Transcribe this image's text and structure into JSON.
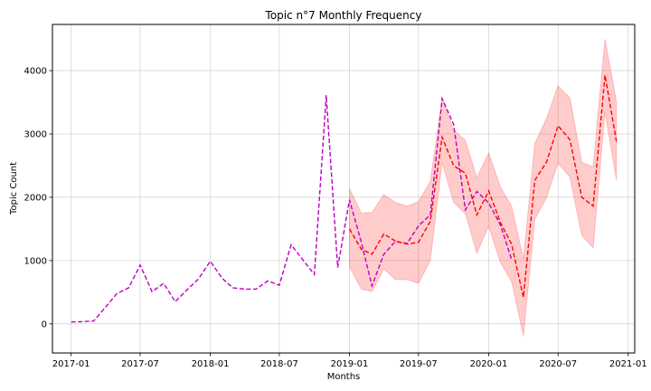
{
  "chart_data": {
    "type": "line",
    "title": "Topic n°7 Monthly Frequency",
    "xlabel": "Months",
    "ylabel": "Topic Count",
    "x_range": [
      "2016-11-13",
      "2021-01-18"
    ],
    "y_range": [
      -460,
      4730
    ],
    "grid": true,
    "x_ticks": [
      {
        "date": "2017-01-01",
        "label": "2017-01"
      },
      {
        "date": "2017-07-01",
        "label": "2017-07"
      },
      {
        "date": "2018-01-01",
        "label": "2018-01"
      },
      {
        "date": "2018-07-01",
        "label": "2018-07"
      },
      {
        "date": "2019-01-01",
        "label": "2019-01"
      },
      {
        "date": "2019-07-01",
        "label": "2019-07"
      },
      {
        "date": "2020-01-01",
        "label": "2020-01"
      },
      {
        "date": "2020-07-01",
        "label": "2020-07"
      },
      {
        "date": "2021-01-01",
        "label": "2021-01"
      }
    ],
    "y_ticks": [
      0,
      1000,
      2000,
      3000,
      4000
    ],
    "series": [
      {
        "style": "dashed",
        "color": "#bf00bf",
        "x": [
          "2017-01-01",
          "2017-02-01",
          "2017-03-01",
          "2017-04-01",
          "2017-05-01",
          "2017-06-01",
          "2017-07-01",
          "2017-08-01",
          "2017-09-01",
          "2017-10-01",
          "2017-11-01",
          "2017-12-01",
          "2018-01-01",
          "2018-02-01",
          "2018-03-01",
          "2018-04-01",
          "2018-05-01",
          "2018-06-01",
          "2018-07-01",
          "2018-08-01",
          "2018-09-01",
          "2018-10-01",
          "2018-11-01",
          "2018-12-01",
          "2019-01-01",
          "2019-02-01",
          "2019-03-01",
          "2019-04-01",
          "2019-05-01",
          "2019-06-01",
          "2019-07-01",
          "2019-08-01",
          "2019-09-01",
          "2019-10-01",
          "2019-11-01",
          "2019-12-01",
          "2020-01-01",
          "2020-02-01",
          "2020-03-01"
        ],
        "values": [
          30,
          35,
          45,
          260,
          480,
          570,
          930,
          510,
          640,
          350,
          540,
          710,
          990,
          720,
          570,
          550,
          550,
          680,
          610,
          1250,
          1010,
          780,
          3610,
          890,
          1960,
          1290,
          600,
          1100,
          1300,
          1270,
          1550,
          1720,
          3560,
          3150,
          1800,
          2090,
          1910,
          1560,
          1020
        ]
      },
      {
        "style": "dashed",
        "color": "#ff0000",
        "x": [
          "2019-01-01",
          "2019-02-01",
          "2019-03-01",
          "2019-04-01",
          "2019-05-01",
          "2019-06-01",
          "2019-07-01",
          "2019-08-01",
          "2019-09-01",
          "2019-10-01",
          "2019-11-01",
          "2019-12-01",
          "2020-01-01",
          "2020-02-01",
          "2020-03-01",
          "2020-04-01",
          "2020-05-01",
          "2020-06-01",
          "2020-07-01",
          "2020-08-01",
          "2020-09-01",
          "2020-10-01",
          "2020-11-01",
          "2020-12-01"
        ],
        "values": [
          1500,
          1180,
          1100,
          1420,
          1310,
          1260,
          1290,
          1620,
          2950,
          2500,
          2380,
          1720,
          2100,
          1600,
          1260,
          420,
          2270,
          2560,
          3130,
          2910,
          2000,
          1860,
          3930,
          2880
        ],
        "band_color": "#ff0000",
        "band_opacity": 0.2,
        "lower": [
          900,
          550,
          510,
          870,
          700,
          700,
          640,
          1000,
          2550,
          1920,
          1740,
          1120,
          1540,
          970,
          670,
          -190,
          1650,
          2000,
          2540,
          2320,
          1400,
          1200,
          3350,
          2270
        ],
        "upper": [
          2140,
          1750,
          1760,
          2040,
          1920,
          1860,
          1930,
          2250,
          3560,
          3060,
          2900,
          2310,
          2700,
          2160,
          1860,
          1030,
          2850,
          3250,
          3760,
          3570,
          2550,
          2480,
          4500,
          3510
        ]
      }
    ]
  }
}
